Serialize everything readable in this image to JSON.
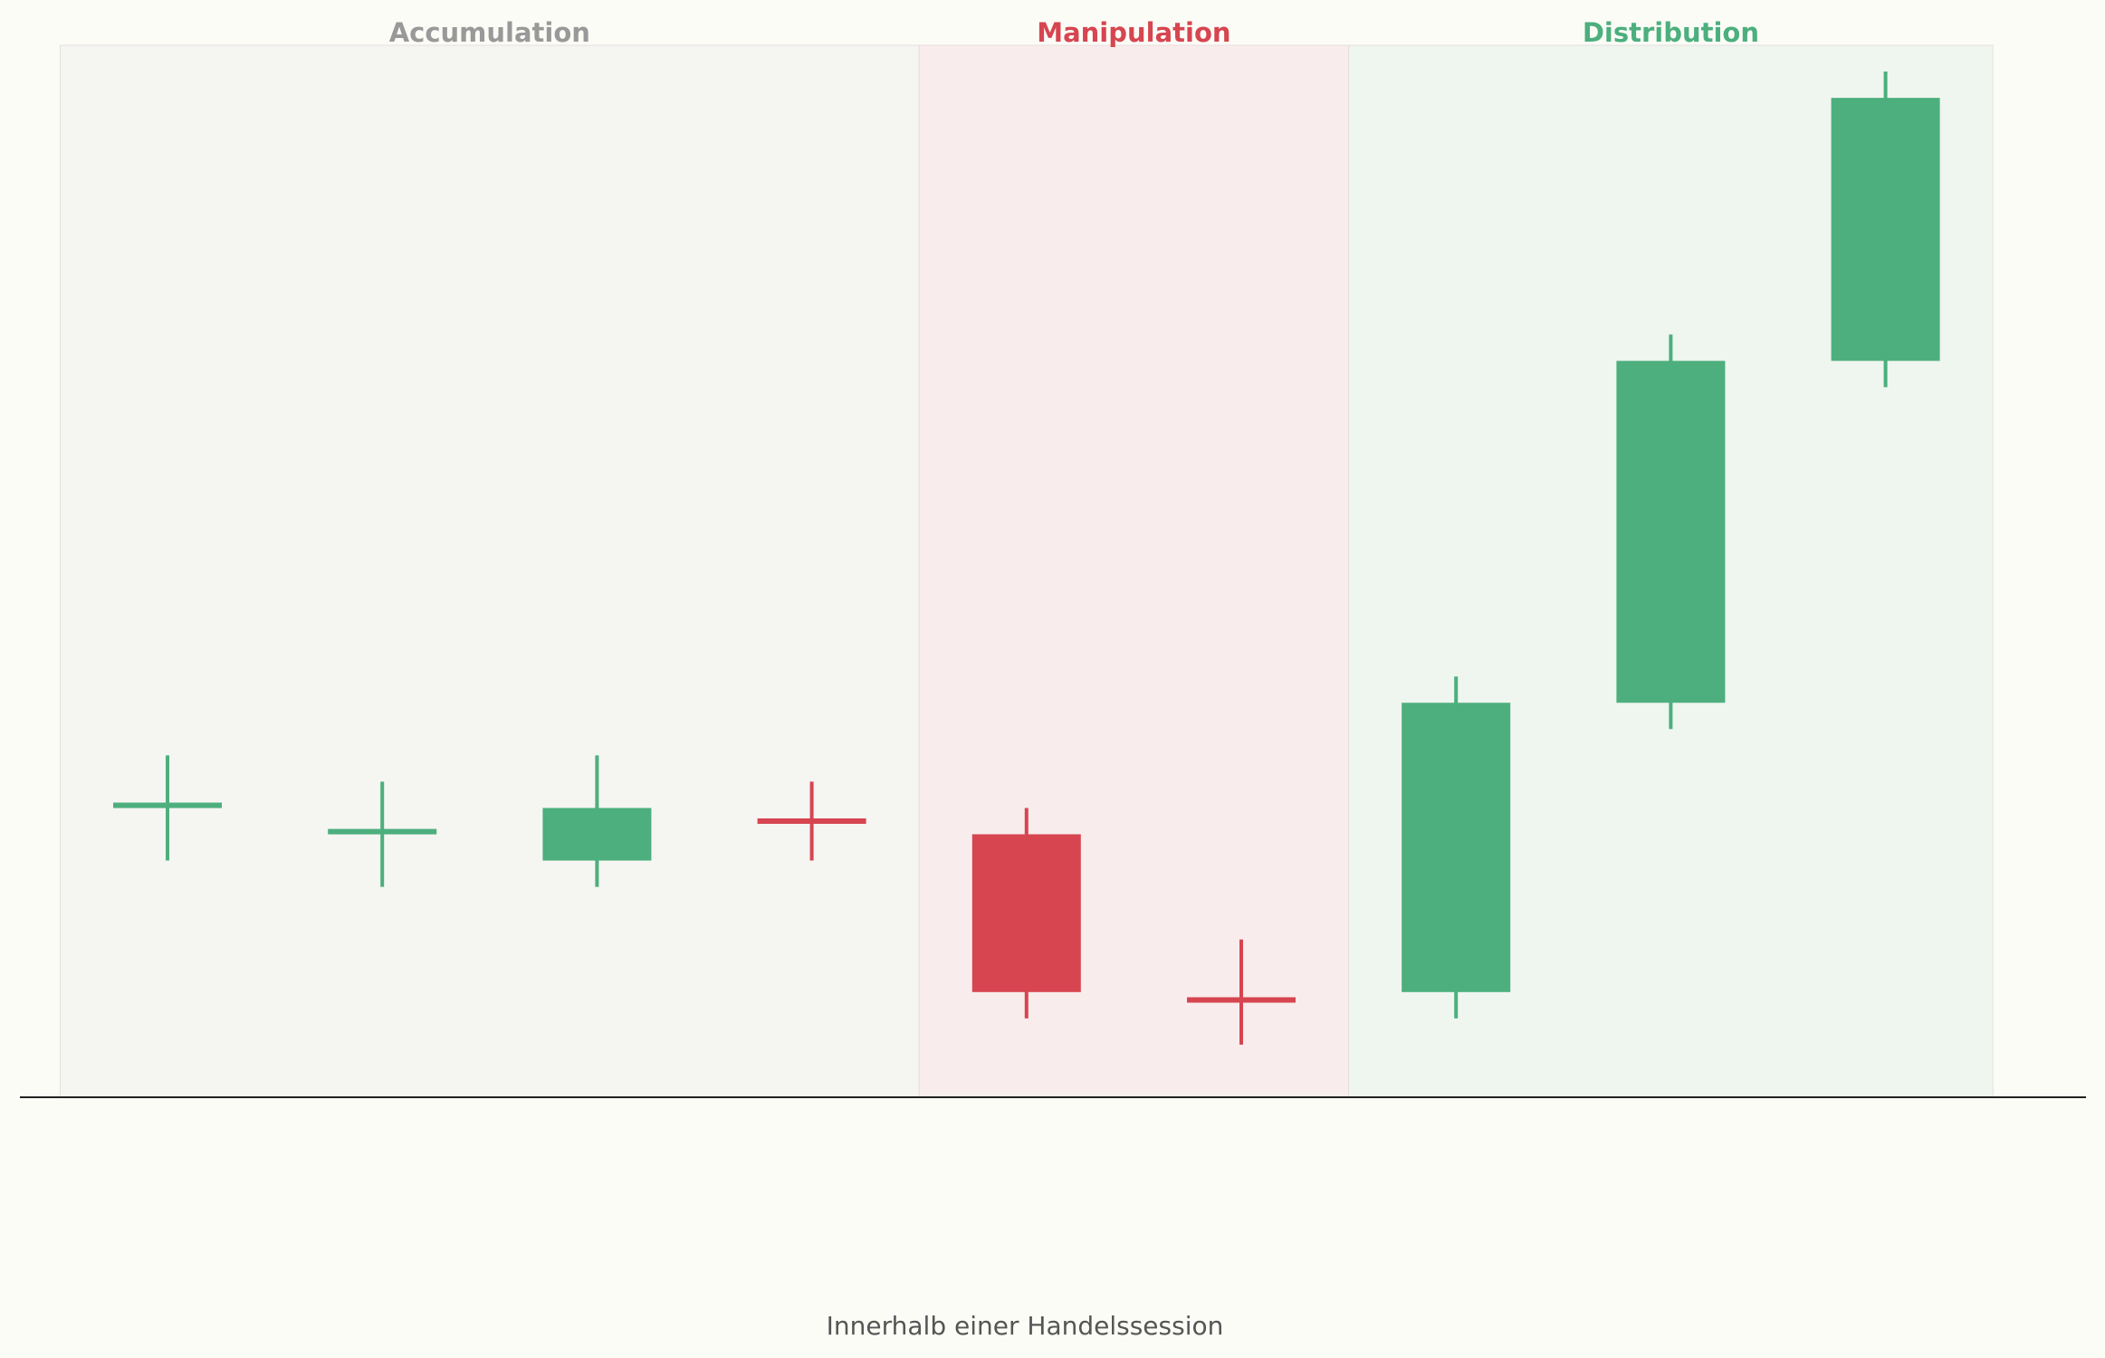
{
  "colors": {
    "background": "#fcfcf7",
    "bullish": "#4caf7d",
    "bearish": "#d64550",
    "accumulation_label": "#999999",
    "accumulation_band": "#f5f5f2",
    "manipulation_band": "#f9ecec",
    "distribution_band": "#eff5ef",
    "axis": "#222222"
  },
  "phases": [
    {
      "label": "Accumulation",
      "start": -0.5,
      "end": 3.5,
      "color": "#999999",
      "band": "#f5f5f2"
    },
    {
      "label": "Manipulation",
      "start": 3.5,
      "end": 5.5,
      "color": "#d64550",
      "band": "#f9ecec"
    },
    {
      "label": "Distribution",
      "start": 5.5,
      "end": 8.5,
      "color": "#4caf7d",
      "band": "#eff5ef"
    }
  ],
  "chart_data": {
    "type": "candlestick",
    "title": "",
    "xlabel": "Innerhalb einer Handelssession",
    "ylabel": "",
    "x_range": [
      -0.5,
      8.5
    ],
    "ylim": [
      89,
      109
    ],
    "grid": false,
    "candles": [
      {
        "index": 0,
        "open": 94.5,
        "close": 94.6,
        "high": 95.5,
        "low": 93.5,
        "direction": "up"
      },
      {
        "index": 1,
        "open": 94.0,
        "close": 94.1,
        "high": 95.0,
        "low": 93.0,
        "direction": "up"
      },
      {
        "index": 2,
        "open": 93.5,
        "close": 94.5,
        "high": 95.5,
        "low": 93.0,
        "direction": "up"
      },
      {
        "index": 3,
        "open": 94.3,
        "close": 94.2,
        "high": 95.0,
        "low": 93.5,
        "direction": "down"
      },
      {
        "index": 4,
        "open": 94.0,
        "close": 91.0,
        "high": 94.5,
        "low": 90.5,
        "direction": "down"
      },
      {
        "index": 5,
        "open": 90.9,
        "close": 90.8,
        "high": 92.0,
        "low": 90.0,
        "direction": "down"
      },
      {
        "index": 6,
        "open": 91.0,
        "close": 96.5,
        "high": 97.0,
        "low": 90.5,
        "direction": "up"
      },
      {
        "index": 7,
        "open": 96.5,
        "close": 103.0,
        "high": 103.5,
        "low": 96.0,
        "direction": "up"
      },
      {
        "index": 8,
        "open": 103.0,
        "close": 108.0,
        "high": 108.5,
        "low": 102.5,
        "direction": "up"
      }
    ]
  }
}
